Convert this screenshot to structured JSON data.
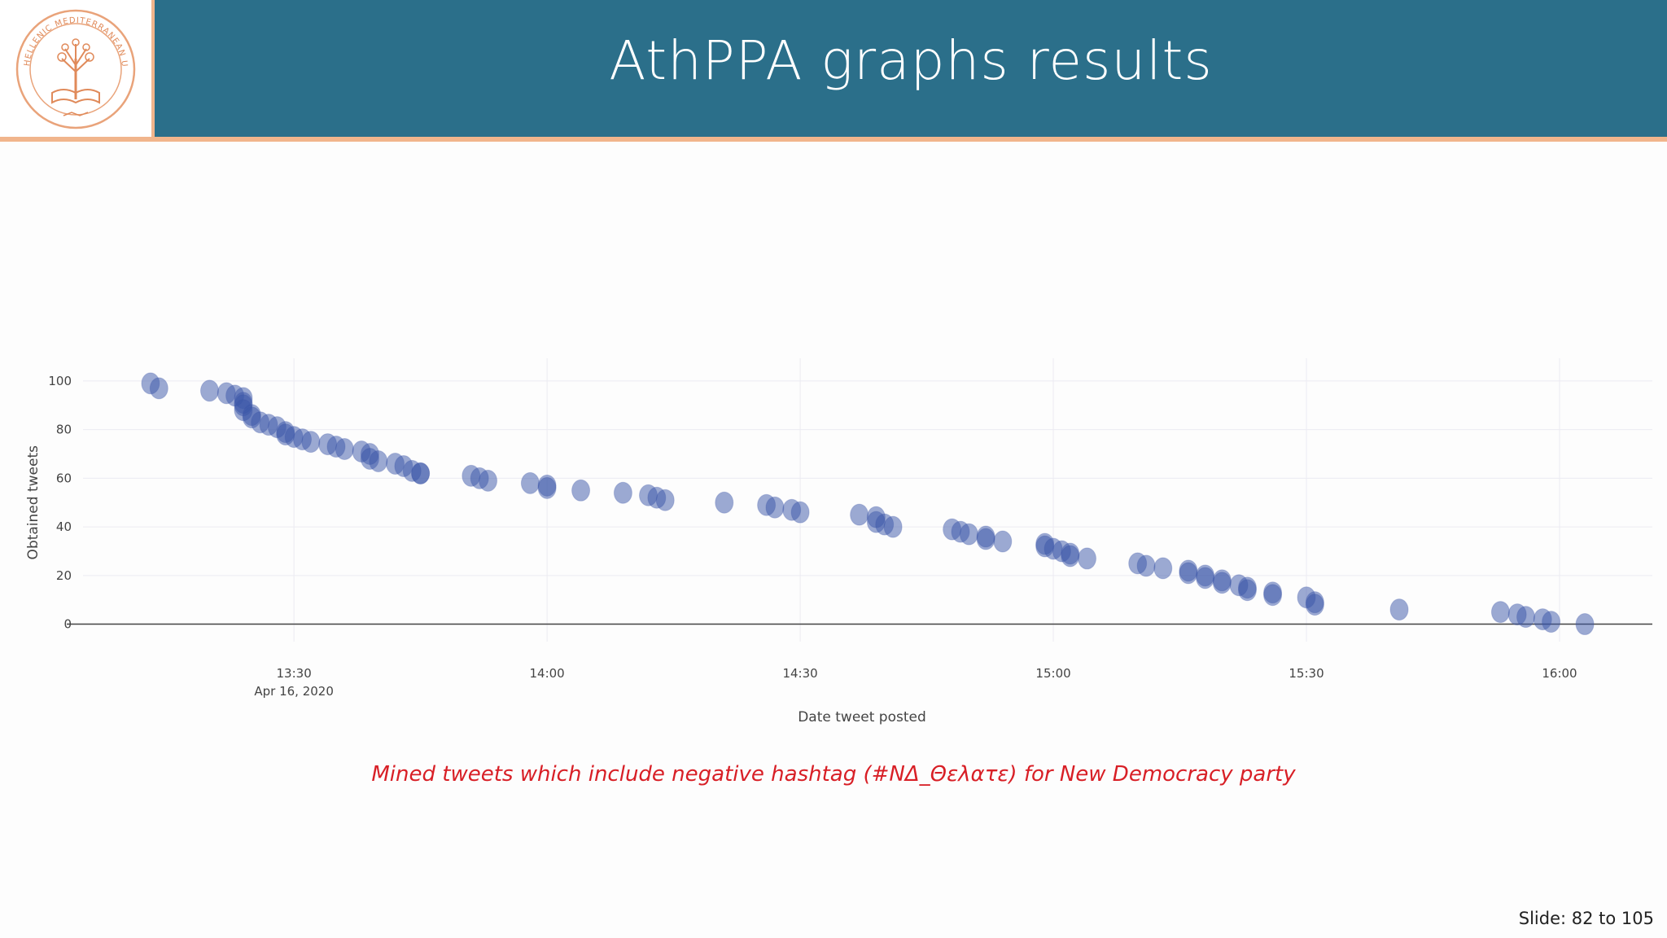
{
  "header": {
    "title": "AthPPA graphs results",
    "logo_text": "HELLENIC MEDITERRANEAN UNIVERSITY"
  },
  "colors": {
    "title_bar": "#2b6f8a",
    "accent_rule": "#f1b58c",
    "marker_fill": "#3a55a8",
    "caption": "#d81f26"
  },
  "chart_data": {
    "type": "scatter",
    "title": "",
    "xlabel": "Date tweet posted",
    "ylabel": "Obtained tweets",
    "ylim": [
      0,
      100
    ],
    "yticks": [
      "0",
      "20",
      "40",
      "60",
      "80",
      "100"
    ],
    "xticks": [
      "13:30",
      "14:00",
      "14:30",
      "15:00",
      "15:30",
      "16:00"
    ],
    "xtick_sublabel": "Apr 16, 2020",
    "grid": true,
    "x_unit": "time (HH:MM) on Apr 16, 2020",
    "x": [
      "13:13",
      "13:14",
      "13:20",
      "13:22",
      "13:23",
      "13:24",
      "13:24",
      "13:24",
      "13:24",
      "13:25",
      "13:25",
      "13:26",
      "13:27",
      "13:28",
      "13:29",
      "13:29",
      "13:30",
      "13:31",
      "13:32",
      "13:34",
      "13:35",
      "13:36",
      "13:38",
      "13:39",
      "13:39",
      "13:40",
      "13:42",
      "13:43",
      "13:44",
      "13:45",
      "13:45",
      "13:51",
      "13:52",
      "13:53",
      "13:58",
      "14:00",
      "14:00",
      "14:04",
      "14:09",
      "14:12",
      "14:13",
      "14:14",
      "14:21",
      "14:26",
      "14:27",
      "14:29",
      "14:30",
      "14:37",
      "14:39",
      "14:39",
      "14:40",
      "14:41",
      "14:48",
      "14:49",
      "14:50",
      "14:52",
      "14:52",
      "14:54",
      "14:59",
      "14:59",
      "15:00",
      "15:01",
      "15:02",
      "15:02",
      "15:04",
      "15:10",
      "15:11",
      "15:13",
      "15:16",
      "15:16",
      "15:18",
      "15:18",
      "15:20",
      "15:20",
      "15:22",
      "15:23",
      "15:23",
      "15:26",
      "15:26",
      "15:30",
      "15:31",
      "15:31",
      "15:41",
      "15:53",
      "15:55",
      "15:56",
      "15:58",
      "15:59",
      "16:03"
    ],
    "y": [
      99,
      97,
      96,
      95,
      94,
      93,
      91,
      90,
      88,
      86,
      85,
      83,
      82,
      81,
      79,
      78,
      77,
      76,
      75,
      74,
      73,
      72,
      71,
      70,
      68,
      67,
      66,
      65,
      63,
      62,
      62,
      61,
      60,
      59,
      58,
      57,
      56,
      55,
      54,
      53,
      52,
      51,
      50,
      49,
      48,
      47,
      46,
      45,
      44,
      42,
      41,
      40,
      39,
      38,
      37,
      36,
      35,
      34,
      33,
      32,
      31,
      30,
      29,
      28,
      27,
      25,
      24,
      23,
      22,
      21,
      20,
      19,
      18,
      17,
      16,
      15,
      14,
      13,
      12,
      11,
      9,
      8,
      6,
      5,
      4,
      3,
      2,
      1,
      0
    ]
  },
  "caption": "Mined tweets which include negative hashtag (#ΝΔ_Θελατε) for New Democracy party",
  "footer": {
    "slide_label": "Slide:  82  to 105"
  }
}
